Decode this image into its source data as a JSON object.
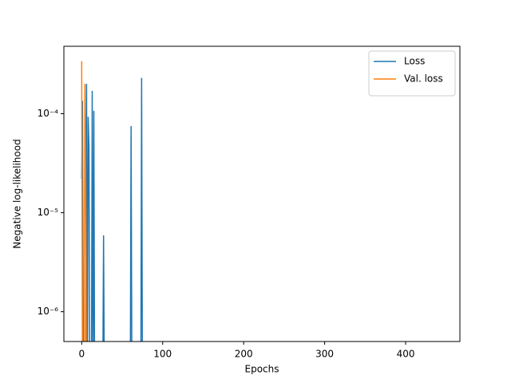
{
  "chart_data": {
    "type": "line",
    "xlabel": "Epochs",
    "ylabel": "Negative log-likelihood",
    "series": [
      {
        "name": "Loss",
        "color": "#1f77b4",
        "x": [
          0,
          1,
          2,
          3,
          4,
          5,
          6,
          7,
          8,
          9,
          10,
          12,
          13,
          14,
          15,
          16,
          26,
          27,
          28,
          60,
          61,
          62,
          73,
          74,
          75,
          445
        ],
        "values": [
          2.2e-05,
          0.000135,
          0,
          0,
          0,
          0,
          0.0002,
          0,
          9.3e-05,
          4.5e-05,
          0,
          0,
          0.00017,
          0,
          0.000107,
          0,
          0,
          5.9e-06,
          0,
          0,
          7.5e-05,
          0,
          0,
          0.00023,
          0,
          0
        ]
      },
      {
        "name": "Val. loss",
        "color": "#ff7f0e",
        "x": [
          0,
          1,
          2,
          3,
          4,
          5,
          6,
          7,
          445
        ],
        "values": [
          0.00034,
          0,
          0,
          0,
          0.0002,
          1.8e-05,
          0,
          0,
          0
        ]
      }
    ],
    "xlim": [
      -22,
      467
    ],
    "xticks": [
      0,
      100,
      200,
      300,
      400
    ],
    "ylim": [
      5e-07,
      0.00048
    ],
    "log_y": true,
    "yticks": [
      {
        "value": 1e-06,
        "label": "10⁻⁶"
      },
      {
        "value": 1e-05,
        "label": "10⁻⁵"
      },
      {
        "value": 0.0001,
        "label": "10⁻⁴"
      }
    ],
    "legend": "upper right"
  }
}
